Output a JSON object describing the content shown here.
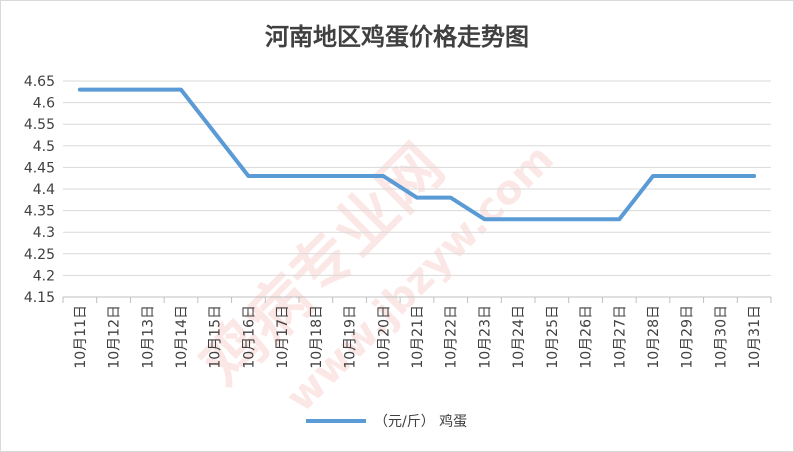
{
  "chart_data": {
    "type": "line",
    "title": "河南地区鸡蛋价格走势图",
    "categories": [
      "10月11日",
      "10月12日",
      "10月13日",
      "10月14日",
      "10月15日",
      "10月16日",
      "10月17日",
      "10月18日",
      "10月19日",
      "10月20日",
      "10月21日",
      "10月22日",
      "10月23日",
      "10月24日",
      "10月25日",
      "10月26日",
      "10月27日",
      "10月28日",
      "10月29日",
      "10月30日",
      "10月31日"
    ],
    "series": [
      {
        "name": "（元/斤） 鸡蛋",
        "values": [
          4.63,
          4.63,
          4.63,
          4.63,
          4.53,
          4.43,
          4.43,
          4.43,
          4.43,
          4.43,
          4.38,
          4.38,
          4.33,
          4.33,
          4.33,
          4.33,
          4.33,
          4.43,
          4.43,
          4.43,
          4.43
        ],
        "color": "#5b9bd5"
      }
    ],
    "ylim": [
      4.15,
      4.65
    ],
    "yticks": [
      "4.15",
      "4.2",
      "4.25",
      "4.3",
      "4.35",
      "4.4",
      "4.45",
      "4.5",
      "4.55",
      "4.6",
      "4.65"
    ],
    "grid": true,
    "legend_position": "bottom"
  },
  "watermark": {
    "brand": "鸡病专业网",
    "url": "www.jbzyw.com"
  }
}
